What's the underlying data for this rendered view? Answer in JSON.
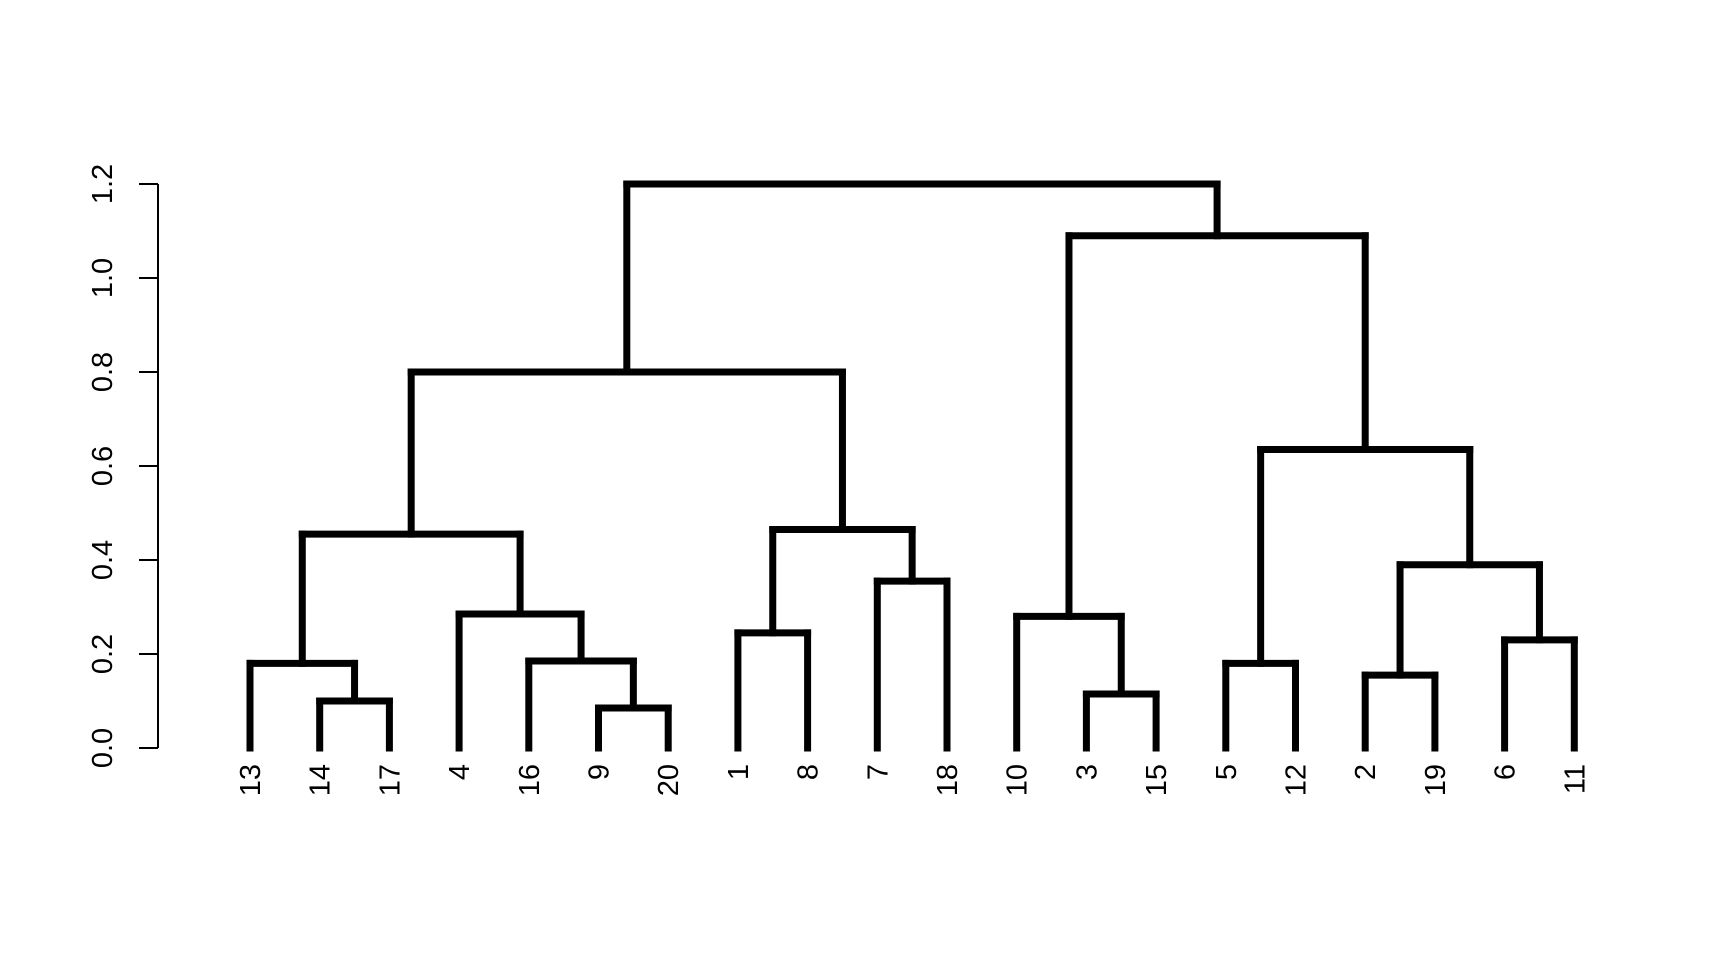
{
  "chart_data": {
    "type": "dendrogram",
    "title": "",
    "xlabel": "",
    "ylabel": "",
    "ylim": [
      0,
      1.2
    ],
    "y_ticks": [
      "0.0",
      "0.2",
      "0.4",
      "0.6",
      "0.8",
      "1.0",
      "1.2"
    ],
    "grid": false,
    "leaves": [
      "13",
      "14",
      "17",
      "4",
      "16",
      "9",
      "20",
      "1",
      "8",
      "7",
      "18",
      "10",
      "3",
      "15",
      "5",
      "12",
      "2",
      "19",
      "6",
      "11"
    ],
    "merges": [
      {
        "left": "14",
        "right": "17",
        "height": 0.1
      },
      {
        "left": "13",
        "right": "14+17",
        "height": 0.18
      },
      {
        "left": "9",
        "right": "20",
        "height": 0.085
      },
      {
        "left": "16",
        "right": "9+20",
        "height": 0.185
      },
      {
        "left": "4",
        "right": "16+9+20",
        "height": 0.285
      },
      {
        "left": "13+14+17",
        "right": "4+16+9+20",
        "height": 0.455
      },
      {
        "left": "1",
        "right": "8",
        "height": 0.245
      },
      {
        "left": "7",
        "right": "18",
        "height": 0.355
      },
      {
        "left": "1+8",
        "right": "7+18",
        "height": 0.465
      },
      {
        "left": "cluster_A",
        "right": "cluster_B",
        "height": 0.8
      },
      {
        "left": "3",
        "right": "15",
        "height": 0.115
      },
      {
        "left": "10",
        "right": "3+15",
        "height": 0.28
      },
      {
        "left": "5",
        "right": "12",
        "height": 0.18
      },
      {
        "left": "2",
        "right": "19",
        "height": 0.155
      },
      {
        "left": "6",
        "right": "11",
        "height": 0.23
      },
      {
        "left": "2+19",
        "right": "6+11",
        "height": 0.39
      },
      {
        "left": "5+12",
        "right": "2+19+6+11",
        "height": 0.635
      },
      {
        "left": "10+3+15",
        "right": "5+12+2+19+6+11",
        "height": 1.09
      },
      {
        "left": "left_group",
        "right": "right_group",
        "height": 1.2
      }
    ]
  }
}
